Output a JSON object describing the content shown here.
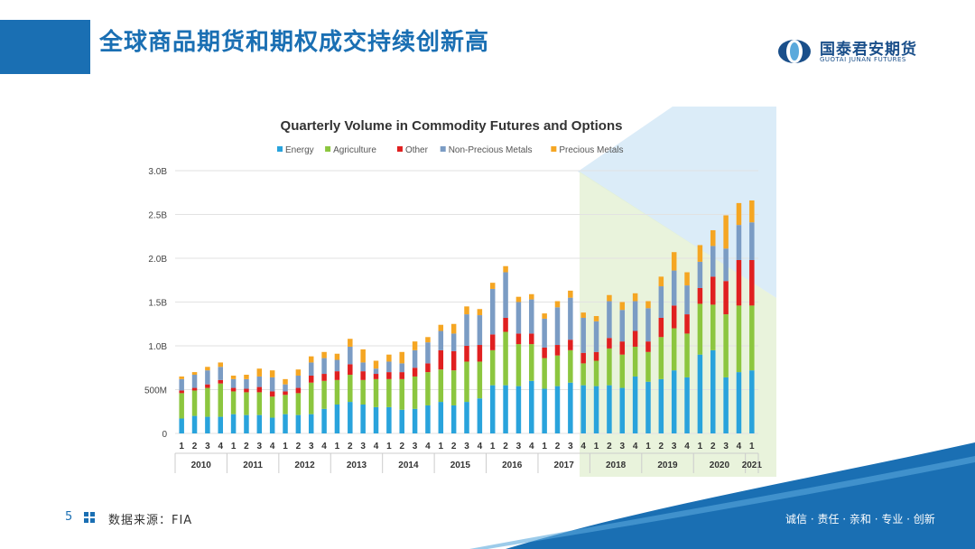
{
  "slide": {
    "title": "全球商品期货和期权成交持续创新高",
    "page_number": "5",
    "source": "数据来源：FIA",
    "slogan": "诚信 · 责任 · 亲和 · 专业 · 创新"
  },
  "logo": {
    "name": "国泰君安期货",
    "subtitle": "GUOTAI JUNAN FUTURES",
    "icon": "guotai-junan-logo-icon"
  },
  "colors": {
    "brand": "#1a6fb3",
    "energy": "#29a3dc",
    "agriculture": "#8cc63f",
    "other": "#e02020",
    "non_precious": "#7b9cc4",
    "precious": "#f5a623"
  },
  "chart_data": {
    "type": "bar",
    "stacked": true,
    "title": "Quarterly Volume in Commodity Futures and Options",
    "y_ticks": [
      "0",
      "500M",
      "1.0B",
      "1.5B",
      "2.0B",
      "2.5B",
      "3.0B"
    ],
    "ylim": [
      0,
      3.0
    ],
    "y_unit": "billions",
    "quarters": [
      "1",
      "2",
      "3",
      "4",
      "1",
      "2",
      "3",
      "4",
      "1",
      "2",
      "3",
      "4",
      "1",
      "2",
      "3",
      "4",
      "1",
      "2",
      "3",
      "4",
      "1",
      "2",
      "3",
      "4",
      "1",
      "2",
      "3",
      "4",
      "1",
      "2",
      "3",
      "4",
      "1",
      "2",
      "3",
      "4",
      "1",
      "2",
      "3",
      "4",
      "1",
      "2",
      "3",
      "4",
      "1"
    ],
    "years": [
      "2010",
      "2011",
      "2012",
      "2013",
      "2014",
      "2015",
      "2016",
      "2017",
      "2018",
      "2019",
      "2020",
      "2021"
    ],
    "legend_position": "top",
    "series": [
      {
        "name": "Energy",
        "color": "#29a3dc",
        "values": [
          0.17,
          0.2,
          0.19,
          0.19,
          0.22,
          0.21,
          0.21,
          0.18,
          0.22,
          0.21,
          0.22,
          0.28,
          0.33,
          0.36,
          0.33,
          0.3,
          0.3,
          0.27,
          0.28,
          0.32,
          0.36,
          0.32,
          0.36,
          0.4,
          0.55,
          0.55,
          0.54,
          0.6,
          0.51,
          0.54,
          0.58,
          0.55,
          0.54,
          0.55,
          0.52,
          0.65,
          0.59,
          0.62,
          0.72,
          0.64,
          0.9,
          0.95,
          0.64,
          0.7,
          0.72
        ]
      },
      {
        "name": "Agriculture",
        "color": "#8cc63f",
        "values": [
          0.29,
          0.29,
          0.33,
          0.38,
          0.26,
          0.26,
          0.26,
          0.24,
          0.22,
          0.25,
          0.36,
          0.32,
          0.28,
          0.31,
          0.28,
          0.32,
          0.32,
          0.35,
          0.37,
          0.38,
          0.37,
          0.4,
          0.46,
          0.42,
          0.4,
          0.61,
          0.48,
          0.42,
          0.35,
          0.35,
          0.37,
          0.25,
          0.29,
          0.42,
          0.38,
          0.34,
          0.34,
          0.48,
          0.48,
          0.5,
          0.58,
          0.52,
          0.72,
          0.76,
          0.74
        ]
      },
      {
        "name": "Other",
        "color": "#e02020",
        "values": [
          0.03,
          0.03,
          0.04,
          0.04,
          0.04,
          0.04,
          0.06,
          0.06,
          0.04,
          0.06,
          0.08,
          0.08,
          0.1,
          0.12,
          0.1,
          0.06,
          0.08,
          0.08,
          0.1,
          0.1,
          0.22,
          0.22,
          0.18,
          0.19,
          0.18,
          0.16,
          0.12,
          0.12,
          0.12,
          0.12,
          0.12,
          0.12,
          0.1,
          0.12,
          0.15,
          0.18,
          0.12,
          0.22,
          0.26,
          0.22,
          0.18,
          0.32,
          0.38,
          0.52,
          0.52
        ]
      },
      {
        "name": "Non-Precious Metals",
        "color": "#7b9cc4",
        "values": [
          0.13,
          0.15,
          0.16,
          0.15,
          0.1,
          0.11,
          0.12,
          0.16,
          0.08,
          0.14,
          0.15,
          0.18,
          0.13,
          0.2,
          0.1,
          0.06,
          0.12,
          0.1,
          0.2,
          0.24,
          0.22,
          0.2,
          0.36,
          0.34,
          0.52,
          0.52,
          0.36,
          0.39,
          0.33,
          0.43,
          0.48,
          0.4,
          0.35,
          0.42,
          0.36,
          0.34,
          0.38,
          0.36,
          0.4,
          0.33,
          0.3,
          0.35,
          0.37,
          0.4,
          0.43
        ]
      },
      {
        "name": "Precious Metals",
        "color": "#f5a623",
        "values": [
          0.03,
          0.03,
          0.04,
          0.05,
          0.04,
          0.05,
          0.09,
          0.08,
          0.06,
          0.07,
          0.07,
          0.07,
          0.07,
          0.09,
          0.15,
          0.09,
          0.08,
          0.13,
          0.1,
          0.06,
          0.07,
          0.11,
          0.09,
          0.07,
          0.07,
          0.07,
          0.06,
          0.06,
          0.06,
          0.07,
          0.08,
          0.06,
          0.06,
          0.07,
          0.09,
          0.09,
          0.08,
          0.11,
          0.21,
          0.15,
          0.19,
          0.18,
          0.38,
          0.25,
          0.25
        ]
      }
    ]
  }
}
